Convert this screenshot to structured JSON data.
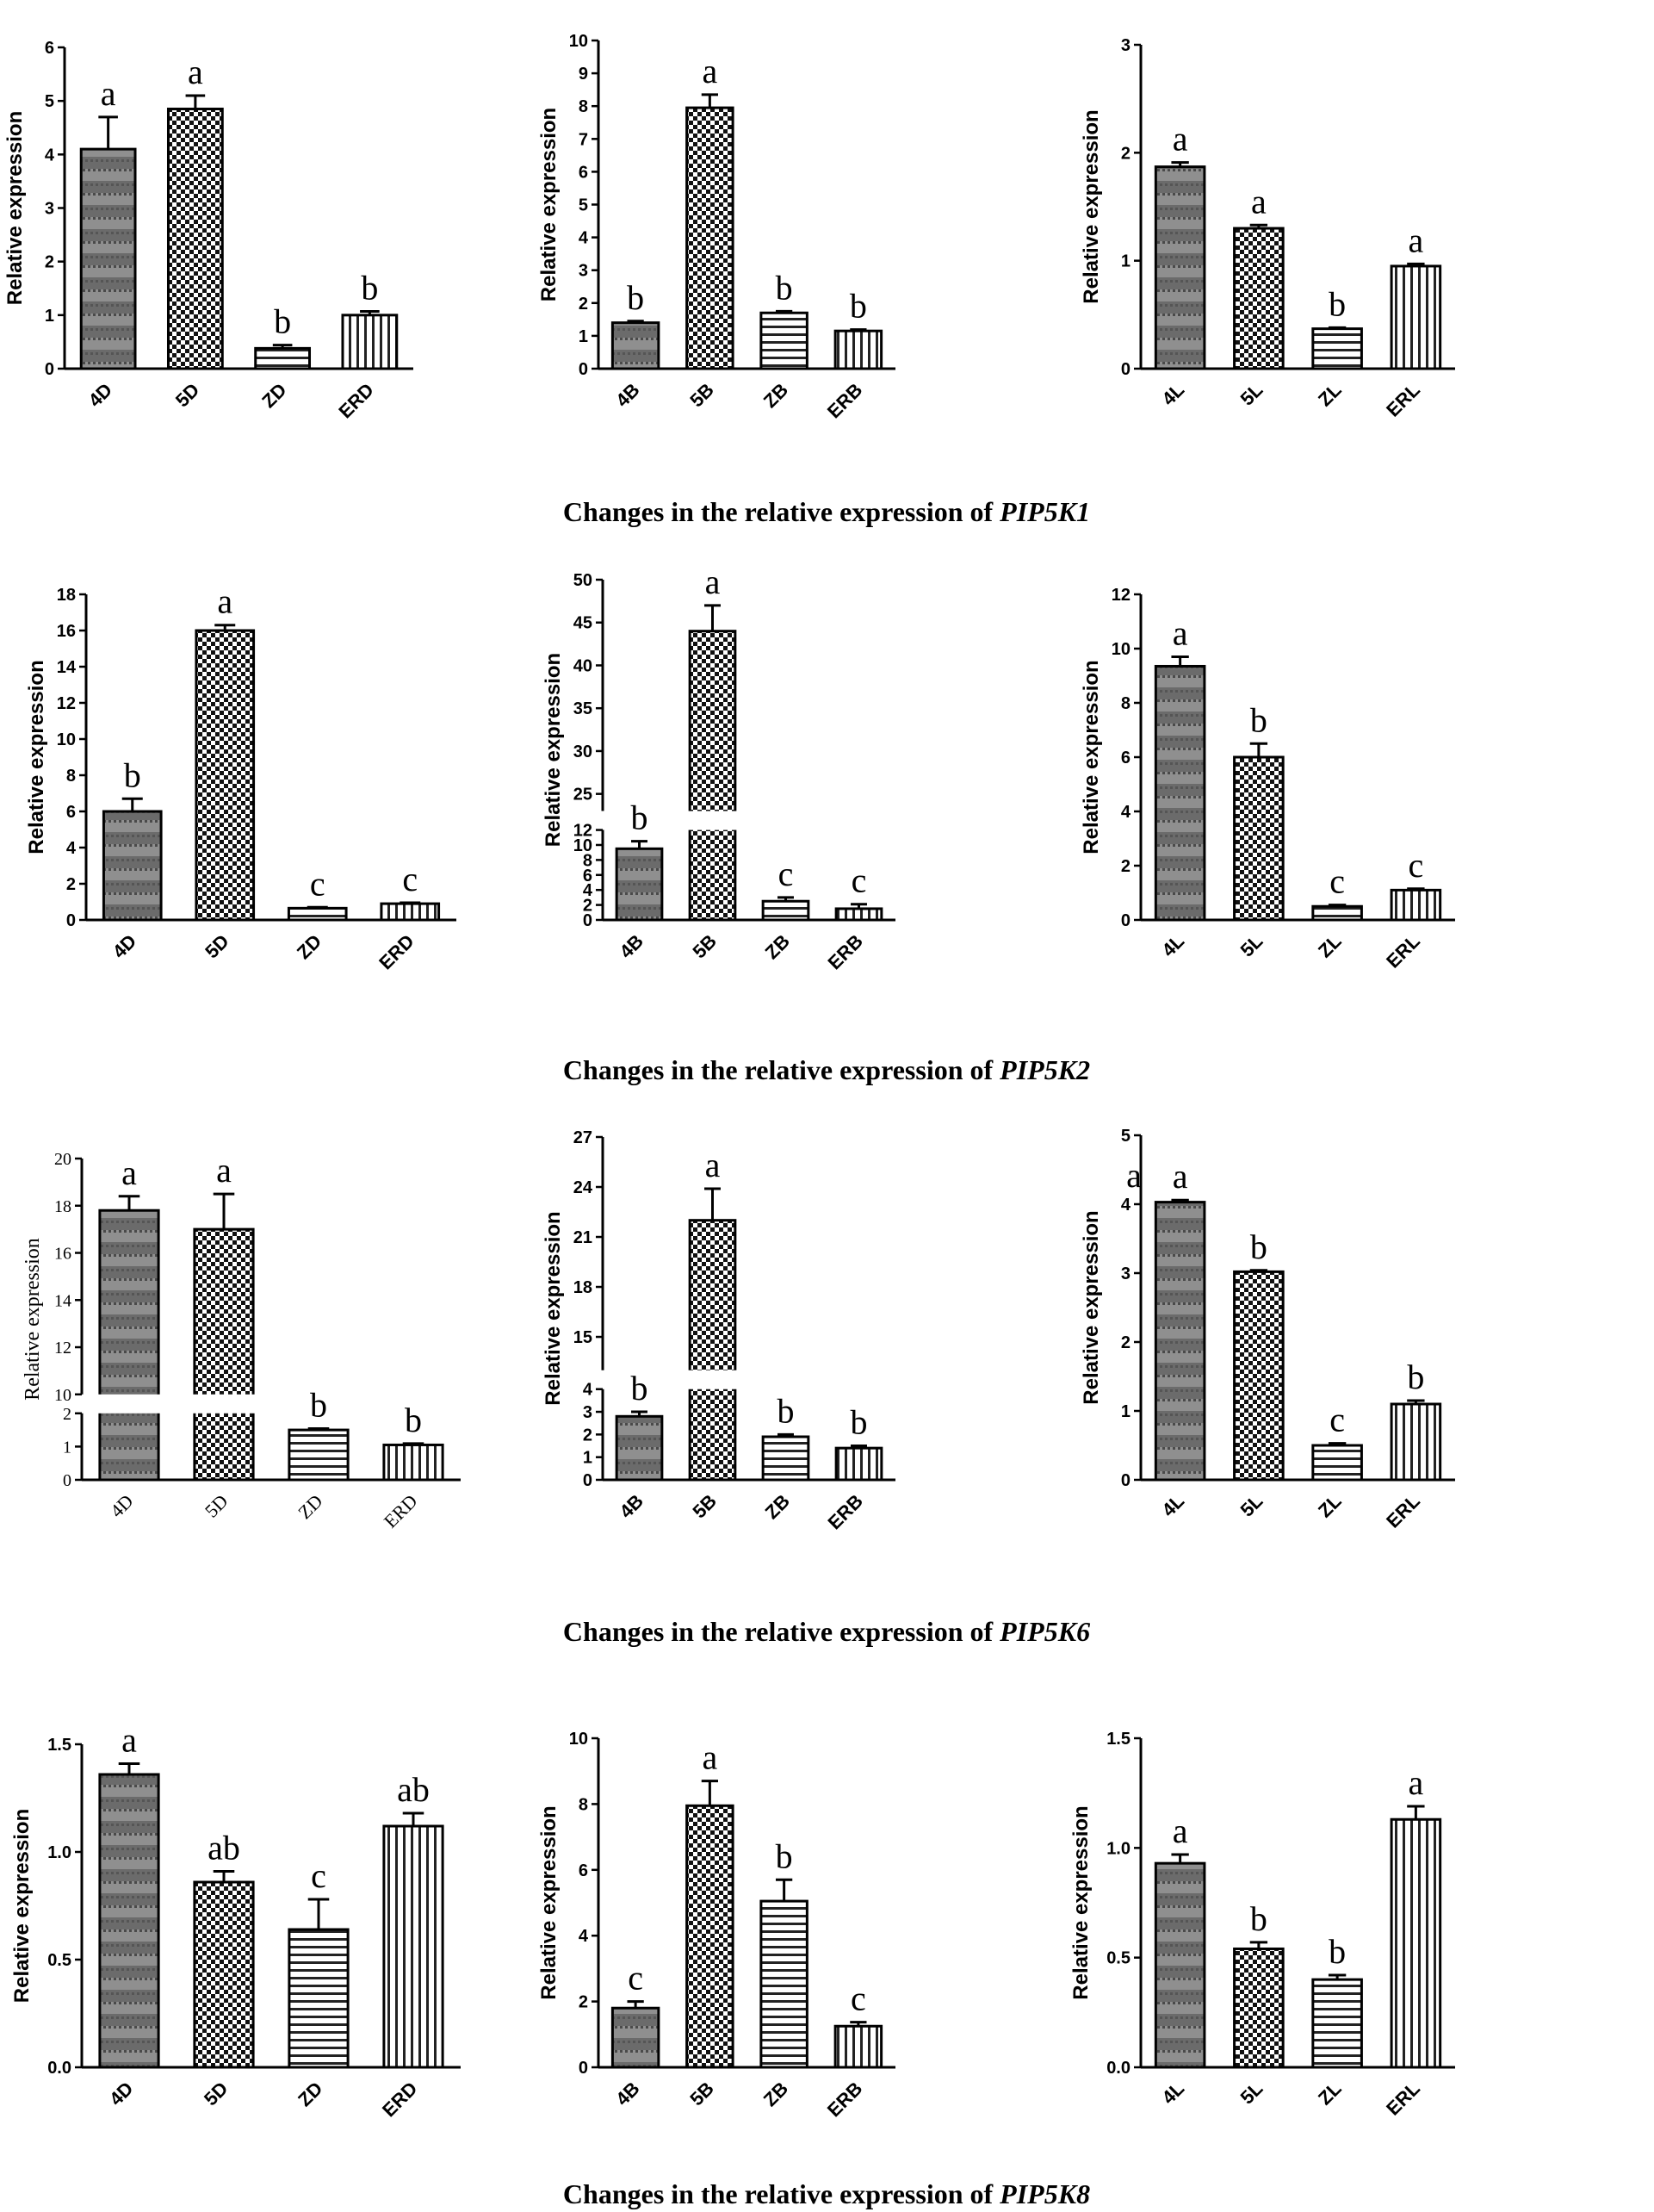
{
  "captions": [
    {
      "prefix": "Changes in the relative expression of ",
      "gene": "PIP5K1"
    },
    {
      "prefix": "Changes in the relative expression of ",
      "gene": "PIP5K2"
    },
    {
      "prefix": "Changes in the relative expression of ",
      "gene": "PIP5K6"
    },
    {
      "prefix": "Changes in the relative expression of ",
      "gene": "PIP5K8"
    }
  ],
  "colors": {
    "bar_stroke": "#000000",
    "pattern_ink": "#111111",
    "stripe_dark": "#555555",
    "stripe_light": "#8a8a8a"
  },
  "chart_data": [
    {
      "type": "bar",
      "gene_row": 1,
      "ylabel": "Relative expression",
      "categories": [
        "4D",
        "5D",
        "ZD",
        "ERD"
      ],
      "values": [
        4.1,
        4.85,
        0.38,
        1.0
      ],
      "errors": [
        0.6,
        0.25,
        0.06,
        0.07
      ],
      "letters": [
        "a",
        "a",
        "b",
        "b"
      ],
      "ylim": [
        0,
        6
      ],
      "yticks": [
        "0",
        "1",
        "2",
        "3",
        "4",
        "5",
        "6"
      ]
    },
    {
      "type": "bar",
      "gene_row": 1,
      "ylabel": "Relative expression",
      "categories": [
        "4B",
        "5B",
        "ZB",
        "ERB"
      ],
      "values": [
        1.4,
        7.95,
        1.7,
        1.15
      ],
      "errors": [
        0.05,
        0.4,
        0.05,
        0.04
      ],
      "letters": [
        "b",
        "a",
        "b",
        "b"
      ],
      "ylim": [
        0,
        10
      ],
      "yticks": [
        "0",
        "1",
        "2",
        "3",
        "4",
        "5",
        "6",
        "7",
        "8",
        "9",
        "10"
      ]
    },
    {
      "type": "bar",
      "gene_row": 1,
      "ylabel": "Relative expression",
      "categories": [
        "4L",
        "5L",
        "ZL",
        "ERL"
      ],
      "values": [
        1.87,
        1.3,
        0.37,
        0.95
      ],
      "errors": [
        0.04,
        0.03,
        0.01,
        0.02
      ],
      "letters": [
        "a",
        "a",
        "b",
        "a"
      ],
      "ylim": [
        0,
        3
      ],
      "yticks": [
        "0",
        "1",
        "2",
        "3"
      ]
    },
    {
      "type": "bar",
      "gene_row": 2,
      "ylabel": "Relative expression",
      "categories": [
        "4D",
        "5D",
        "ZD",
        "ERD"
      ],
      "values": [
        6.0,
        16.0,
        0.65,
        0.9
      ],
      "errors": [
        0.7,
        0.3,
        0.05,
        0.05
      ],
      "letters": [
        "b",
        "a",
        "c",
        "c"
      ],
      "ylim": [
        0,
        18
      ],
      "yticks": [
        "0",
        "2",
        "4",
        "6",
        "8",
        "10",
        "12",
        "14",
        "16",
        "18"
      ]
    },
    {
      "type": "bar",
      "gene_row": 2,
      "ylabel": "Relative expression",
      "categories": [
        "4B",
        "5B",
        "ZB",
        "ERB"
      ],
      "values": [
        9.5,
        44.0,
        2.5,
        1.5
      ],
      "errors": [
        1.0,
        3.0,
        0.5,
        0.6
      ],
      "letters": [
        "b",
        "a",
        "c",
        "c"
      ],
      "ylim": [
        0,
        50
      ],
      "axis_break": {
        "lower": [
          0,
          12
        ],
        "upper": [
          23,
          50
        ]
      },
      "yticks": [
        "0",
        "2",
        "4",
        "6",
        "8",
        "10",
        "12",
        "25",
        "30",
        "35",
        "40",
        "45",
        "50"
      ]
    },
    {
      "type": "bar",
      "gene_row": 2,
      "ylabel": "Relative expression",
      "categories": [
        "4L",
        "5L",
        "ZL",
        "ERL"
      ],
      "values": [
        9.35,
        6.0,
        0.5,
        1.1
      ],
      "errors": [
        0.35,
        0.5,
        0.05,
        0.05
      ],
      "letters": [
        "a",
        "b",
        "c",
        "c"
      ],
      "ylim": [
        0,
        12
      ],
      "yticks": [
        "0",
        "2",
        "4",
        "6",
        "8",
        "10",
        "12"
      ]
    },
    {
      "type": "bar",
      "gene_row": 3,
      "ylabel": "Relative expression",
      "categories": [
        "4D",
        "5D",
        "ZD",
        "ERD"
      ],
      "values": [
        17.8,
        17.0,
        1.5,
        1.05
      ],
      "errors": [
        0.6,
        1.5,
        0.04,
        0.04
      ],
      "letters": [
        "a",
        "a",
        "b",
        "b"
      ],
      "ylim": [
        0,
        20
      ],
      "axis_break": {
        "lower": [
          0,
          2
        ],
        "upper": [
          10,
          20
        ]
      },
      "yticks": [
        "0",
        "1",
        "2",
        "10",
        "12",
        "14",
        "16",
        "18",
        "20"
      ]
    },
    {
      "type": "bar",
      "gene_row": 3,
      "ylabel": "Relative expression",
      "categories": [
        "4B",
        "5B",
        "ZB",
        "ERB"
      ],
      "values": [
        2.8,
        22.0,
        1.9,
        1.4
      ],
      "errors": [
        0.2,
        1.9,
        0.1,
        0.1
      ],
      "letters": [
        "b",
        "a",
        "b",
        "b"
      ],
      "ylim": [
        0,
        27
      ],
      "axis_break": {
        "lower": [
          0,
          4
        ],
        "upper": [
          13,
          27
        ]
      },
      "yticks": [
        "0",
        "1",
        "2",
        "3",
        "4",
        "15",
        "18",
        "21",
        "24",
        "27"
      ]
    },
    {
      "type": "bar",
      "gene_row": 3,
      "ylabel": "Relative expression",
      "categories": [
        "4L",
        "5L",
        "ZL",
        "ERL"
      ],
      "values": [
        4.03,
        3.02,
        0.5,
        1.1
      ],
      "errors": [
        0.03,
        0.02,
        0.03,
        0.05
      ],
      "letters": [
        "a",
        "b",
        "c",
        "b"
      ],
      "extra_letter": "a",
      "ylim": [
        0,
        5
      ],
      "yticks": [
        "0",
        "1",
        "2",
        "3",
        "4",
        "5"
      ]
    },
    {
      "type": "bar",
      "gene_row": 4,
      "ylabel": "Relative expression",
      "categories": [
        "4D",
        "5D",
        "ZD",
        "ERD"
      ],
      "values": [
        1.36,
        0.86,
        0.64,
        1.12
      ],
      "errors": [
        0.05,
        0.05,
        0.14,
        0.06
      ],
      "letters": [
        "a",
        "ab",
        "c",
        "ab"
      ],
      "ylim": [
        0,
        1.5
      ],
      "yticks": [
        "0.0",
        "0.5",
        "1.0",
        "1.5"
      ]
    },
    {
      "type": "bar",
      "gene_row": 4,
      "ylabel": "Relative expression",
      "categories": [
        "4B",
        "5B",
        "ZB",
        "ERB"
      ],
      "values": [
        1.8,
        7.95,
        5.05,
        1.25
      ],
      "errors": [
        0.2,
        0.75,
        0.65,
        0.12
      ],
      "letters": [
        "c",
        "a",
        "b",
        "c"
      ],
      "ylim": [
        0,
        10
      ],
      "yticks": [
        "0",
        "2",
        "4",
        "6",
        "8",
        "10"
      ]
    },
    {
      "type": "bar",
      "gene_row": 4,
      "ylabel": "Relative expression",
      "categories": [
        "4L",
        "5L",
        "ZL",
        "ERL"
      ],
      "values": [
        0.93,
        0.54,
        0.4,
        1.13
      ],
      "errors": [
        0.04,
        0.03,
        0.02,
        0.06
      ],
      "letters": [
        "a",
        "b",
        "b",
        "a"
      ],
      "ylim": [
        0,
        1.5
      ],
      "yticks": [
        "0.0",
        "0.5",
        "1.0",
        "1.5"
      ]
    }
  ]
}
